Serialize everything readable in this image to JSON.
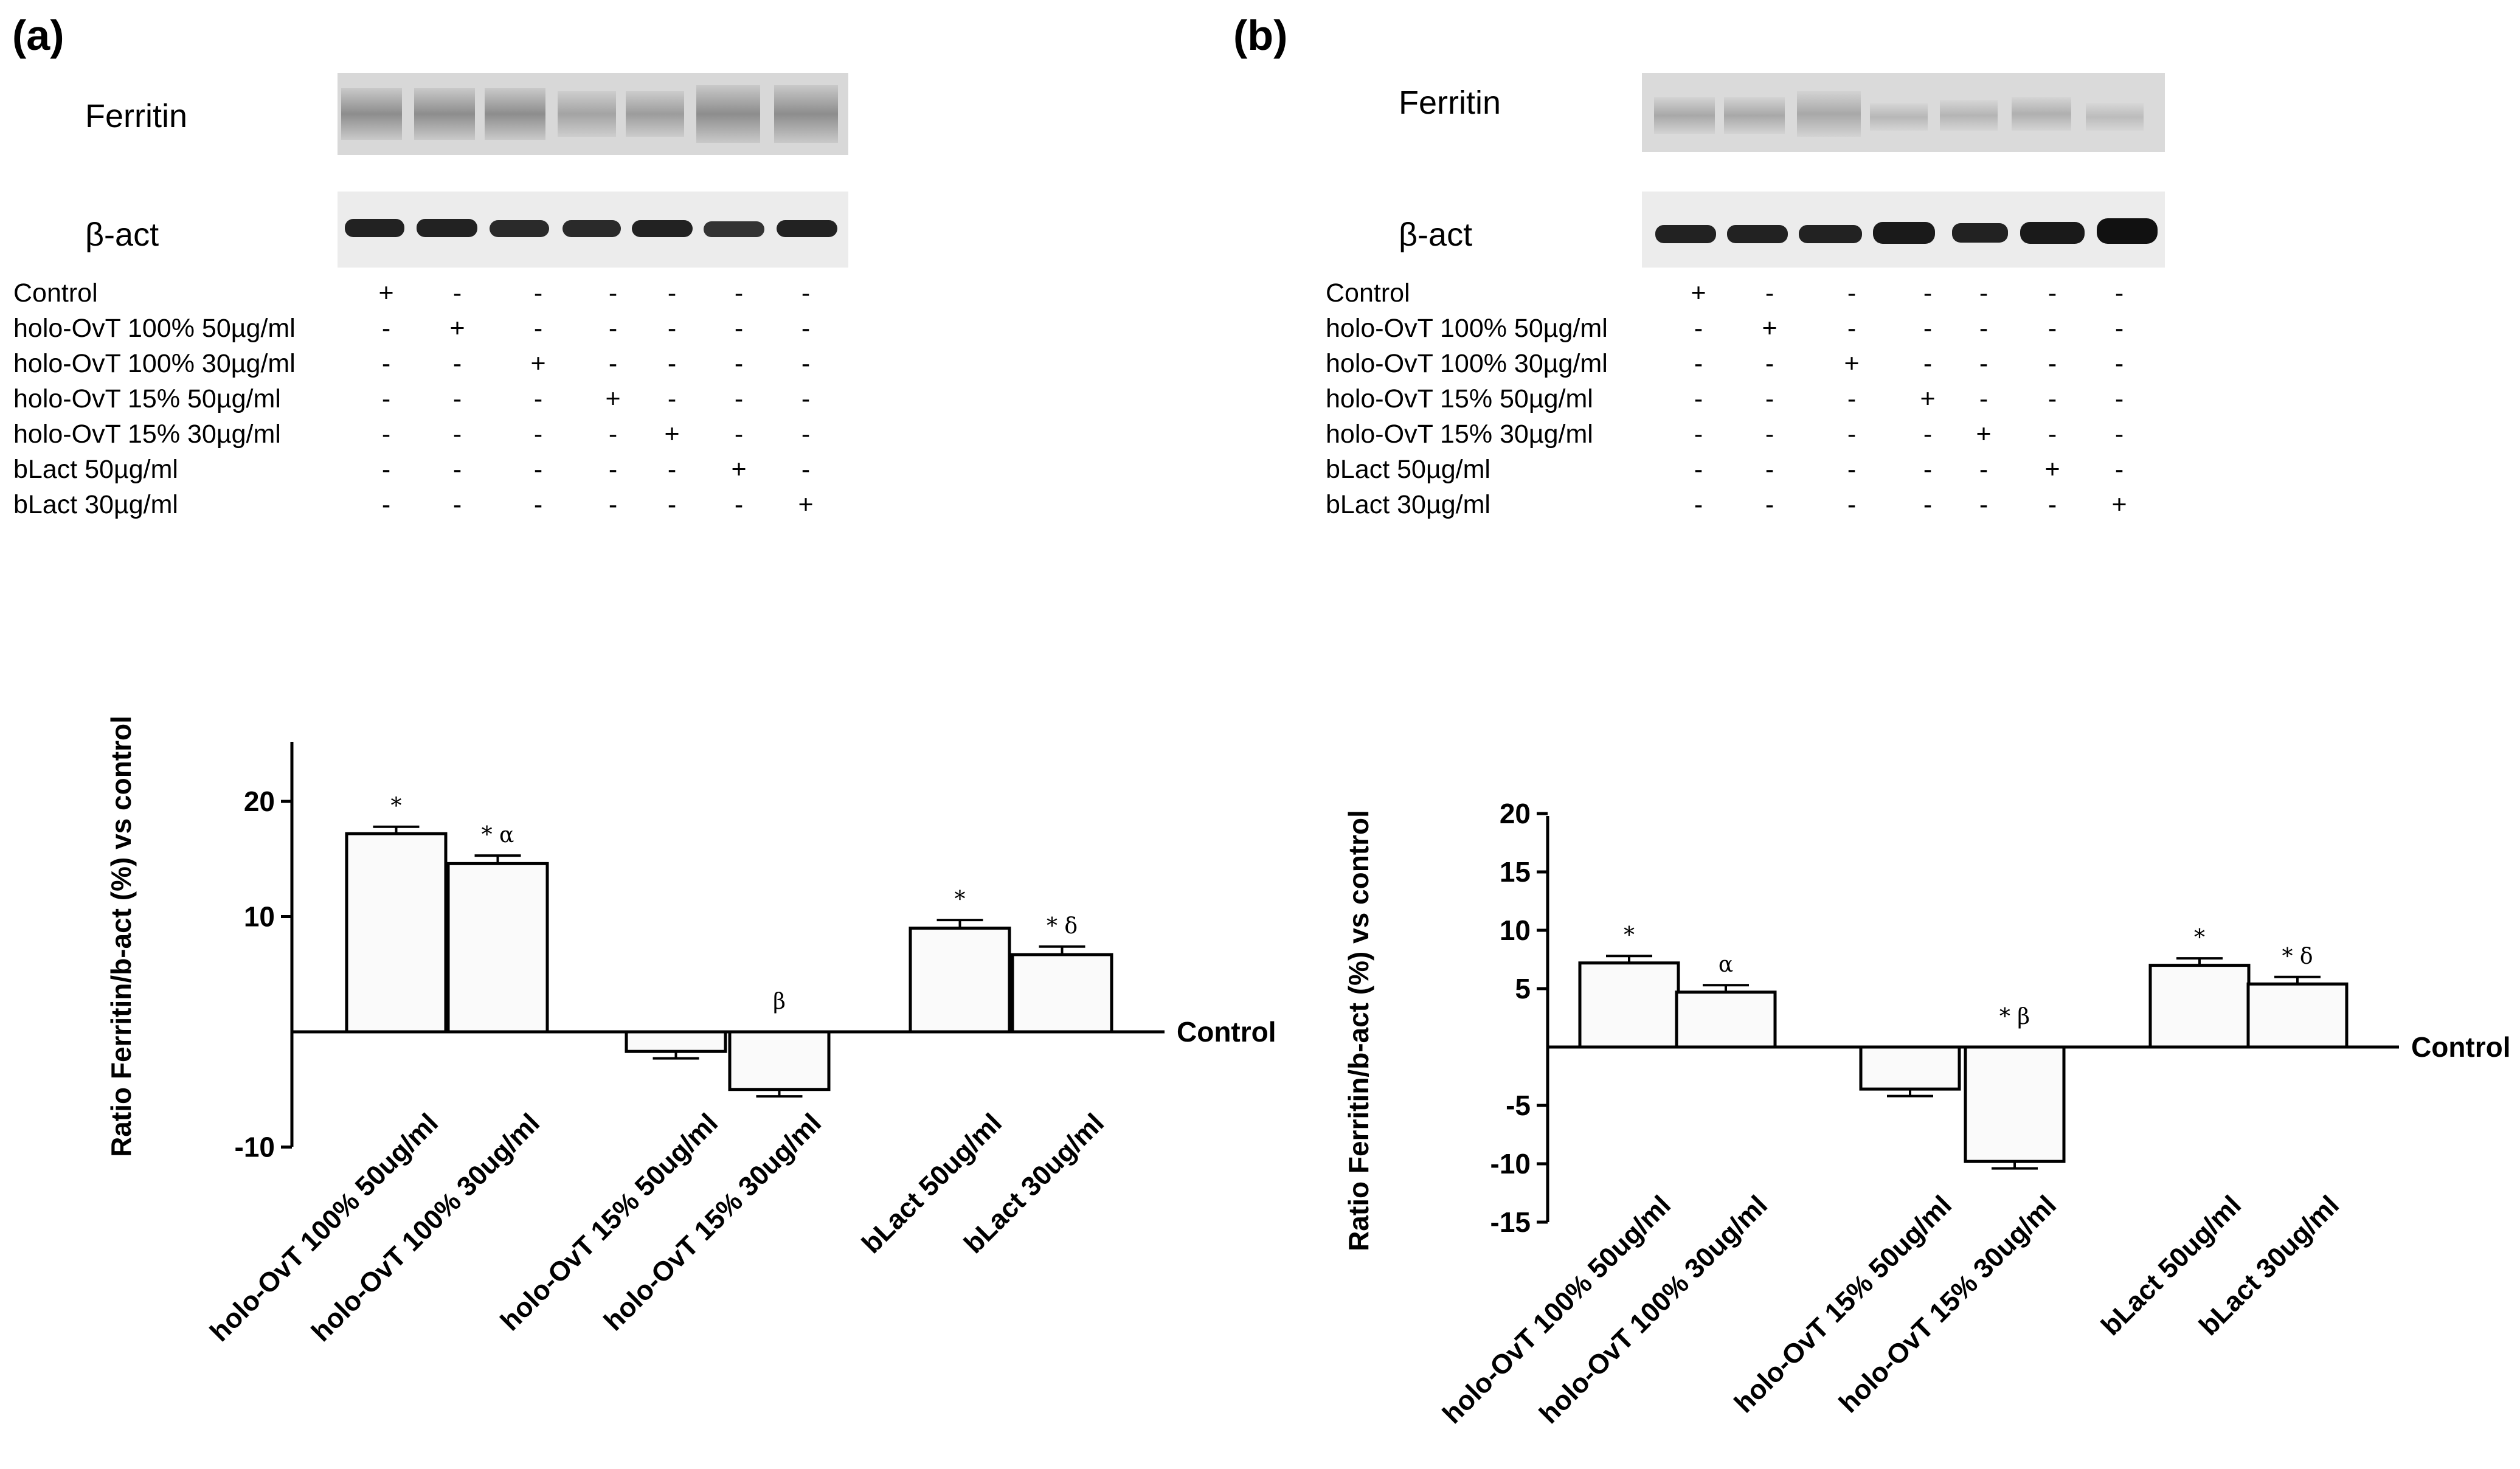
{
  "panels": [
    {
      "label": "(a)",
      "blot": {
        "ferritin_label": "Ferritin",
        "actin_label": "β-act",
        "treatments": [
          {
            "name": "Control",
            "signs": [
              "+",
              "-",
              "-",
              "-",
              "-",
              "-",
              "-"
            ]
          },
          {
            "name": "holo-OvT 100% 50µg/ml",
            "signs": [
              "-",
              "+",
              "-",
              "-",
              "-",
              "-",
              "-"
            ]
          },
          {
            "name": "holo-OvT 100% 30µg/ml",
            "signs": [
              "-",
              "-",
              "+",
              "-",
              "-",
              "-",
              "-"
            ]
          },
          {
            "name": "holo-OvT 15% 50µg/ml",
            "signs": [
              "-",
              "-",
              "-",
              "+",
              "-",
              "-",
              "-"
            ]
          },
          {
            "name": "holo-OvT 15% 30µg/ml",
            "signs": [
              "-",
              "-",
              "-",
              "-",
              "+",
              "-",
              "-"
            ]
          },
          {
            "name": "bLact 50µg/ml",
            "signs": [
              "-",
              "-",
              "-",
              "-",
              "-",
              "+",
              "-"
            ]
          },
          {
            "name": "bLact 30µg/ml",
            "signs": [
              "-",
              "-",
              "-",
              "-",
              "-",
              "-",
              "+"
            ]
          }
        ]
      }
    },
    {
      "label": "(b)",
      "blot": {
        "ferritin_label": "Ferritin",
        "actin_label": "β-act",
        "treatments": [
          {
            "name": "Control",
            "signs": [
              "+",
              "-",
              "-",
              "-",
              "-",
              "-",
              "-"
            ]
          },
          {
            "name": "holo-OvT 100% 50µg/ml",
            "signs": [
              "-",
              "+",
              "-",
              "-",
              "-",
              "-",
              "-"
            ]
          },
          {
            "name": "holo-OvT 100% 30µg/ml",
            "signs": [
              "-",
              "-",
              "+",
              "-",
              "-",
              "-",
              "-"
            ]
          },
          {
            "name": "holo-OvT 15% 50µg/ml",
            "signs": [
              "-",
              "-",
              "-",
              "+",
              "-",
              "-",
              "-"
            ]
          },
          {
            "name": "holo-OvT 15% 30µg/ml",
            "signs": [
              "-",
              "-",
              "-",
              "-",
              "+",
              "-",
              "-"
            ]
          },
          {
            "name": "bLact 50µg/ml",
            "signs": [
              "-",
              "-",
              "-",
              "-",
              "-",
              "+",
              "-"
            ]
          },
          {
            "name": "bLact 30µg/ml",
            "signs": [
              "-",
              "-",
              "-",
              "-",
              "-",
              "-",
              "+"
            ]
          }
        ]
      }
    }
  ],
  "chart_data": [
    {
      "type": "bar",
      "panel": "(a)",
      "categories": [
        "holo-OvT 100% 50ug/ml",
        "holo-OvT 100% 30ug/ml",
        "holo-OvT 15% 50ug/ml",
        "holo-OvT 15% 30ug/ml",
        "bLact 50ug/ml",
        "bLact 30ug/ml"
      ],
      "values": [
        17.2,
        14.6,
        -1.7,
        -5.0,
        9.0,
        6.7
      ],
      "errors": [
        0.6,
        0.7,
        0.6,
        0.6,
        0.7,
        0.7
      ],
      "significance": [
        "*",
        "* α",
        "",
        "β",
        "*",
        "* δ"
      ],
      "ylabel": "Ratio Ferritin/b-act (%) vs control",
      "baseline_label": "Control",
      "yticks": [
        "-10",
        "10",
        "20"
      ],
      "ylim": [
        -10,
        25
      ]
    },
    {
      "type": "bar",
      "panel": "(b)",
      "categories": [
        "holo-OvT 100% 50ug/ml",
        "holo-OvT 100% 30ug/ml",
        "holo-OvT 15% 50ug/ml",
        "holo-OvT 15% 30ug/ml",
        "bLact 50ug/ml",
        "bLact 30ug/ml"
      ],
      "values": [
        7.2,
        4.7,
        -3.6,
        -9.8,
        7.0,
        5.4
      ],
      "errors": [
        0.6,
        0.6,
        0.6,
        0.6,
        0.6,
        0.6
      ],
      "significance": [
        "*",
        "α",
        "",
        "* β",
        "*",
        "* δ"
      ],
      "ylabel": "Ratio Ferritin/b-act (%) vs control",
      "baseline_label": "Control",
      "yticks": [
        "-15",
        "-10",
        "-5",
        "5",
        "10",
        "15",
        "20"
      ],
      "ylim": [
        -15,
        20
      ]
    }
  ]
}
